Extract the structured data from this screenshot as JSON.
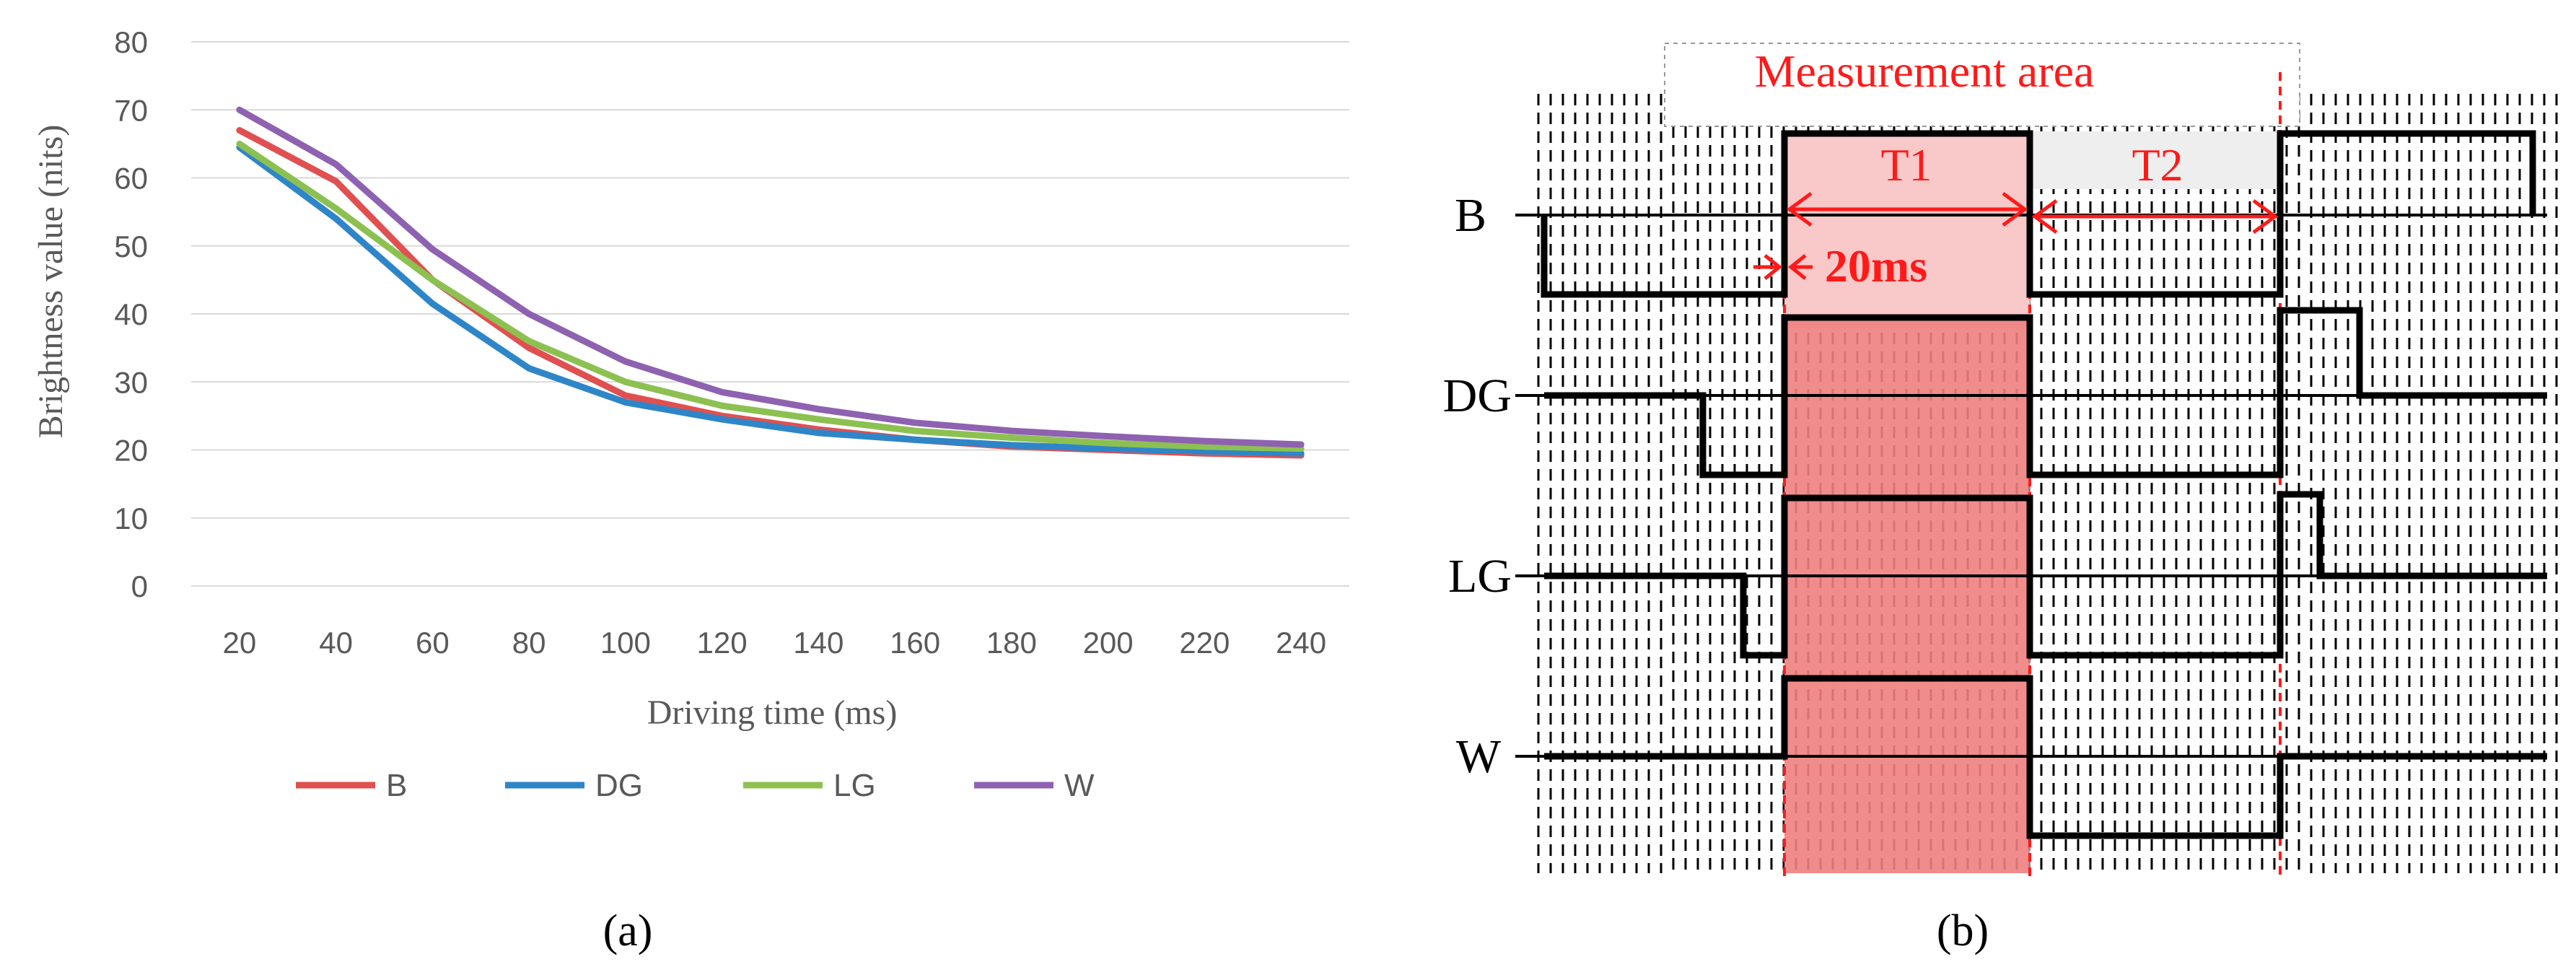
{
  "chart_data": {
    "type": "line",
    "title": "",
    "xlabel": "Driving time (ms)",
    "ylabel": "Brightness value (nits)",
    "categories": [
      "20",
      "40",
      "60",
      "80",
      "100",
      "120",
      "140",
      "160",
      "180",
      "200",
      "220",
      "240"
    ],
    "x": [
      20,
      40,
      60,
      80,
      100,
      120,
      140,
      160,
      180,
      200,
      220,
      240
    ],
    "ylim": [
      0,
      80
    ],
    "yticks": [
      "0",
      "10",
      "20",
      "30",
      "40",
      "50",
      "60",
      "70",
      "80"
    ],
    "grid": true,
    "legend_position": "bottom",
    "series": [
      {
        "name": "B",
        "color": "#e05050",
        "values": [
          67,
          59.5,
          45,
          35,
          28,
          25,
          23,
          21.5,
          20.5,
          20,
          19.5,
          19.2
        ]
      },
      {
        "name": "DG",
        "color": "#2e86c8",
        "values": [
          64.5,
          54,
          41.5,
          32,
          27,
          24.5,
          22.5,
          21.5,
          20.7,
          20.2,
          19.8,
          19.5
        ]
      },
      {
        "name": "LG",
        "color": "#8cc152",
        "values": [
          65,
          55.5,
          45,
          36,
          30,
          26.5,
          24.5,
          22.8,
          21.8,
          21,
          20.5,
          20.2
        ]
      },
      {
        "name": "W",
        "color": "#8e62b0",
        "values": [
          70,
          62,
          49.5,
          40,
          33,
          28.5,
          26,
          24,
          22.8,
          22,
          21.3,
          20.8
        ]
      }
    ]
  },
  "captions": {
    "a": "(a)",
    "b": "(b)"
  },
  "timing_diagram": {
    "title": "Measurement area",
    "t1_label": "T1",
    "t2_label": "T2",
    "interval_label": "20ms",
    "signals": [
      "B",
      "DG",
      "LG",
      "W"
    ],
    "accent_color": "#ff1a1a",
    "shade_color": "#f08080"
  }
}
